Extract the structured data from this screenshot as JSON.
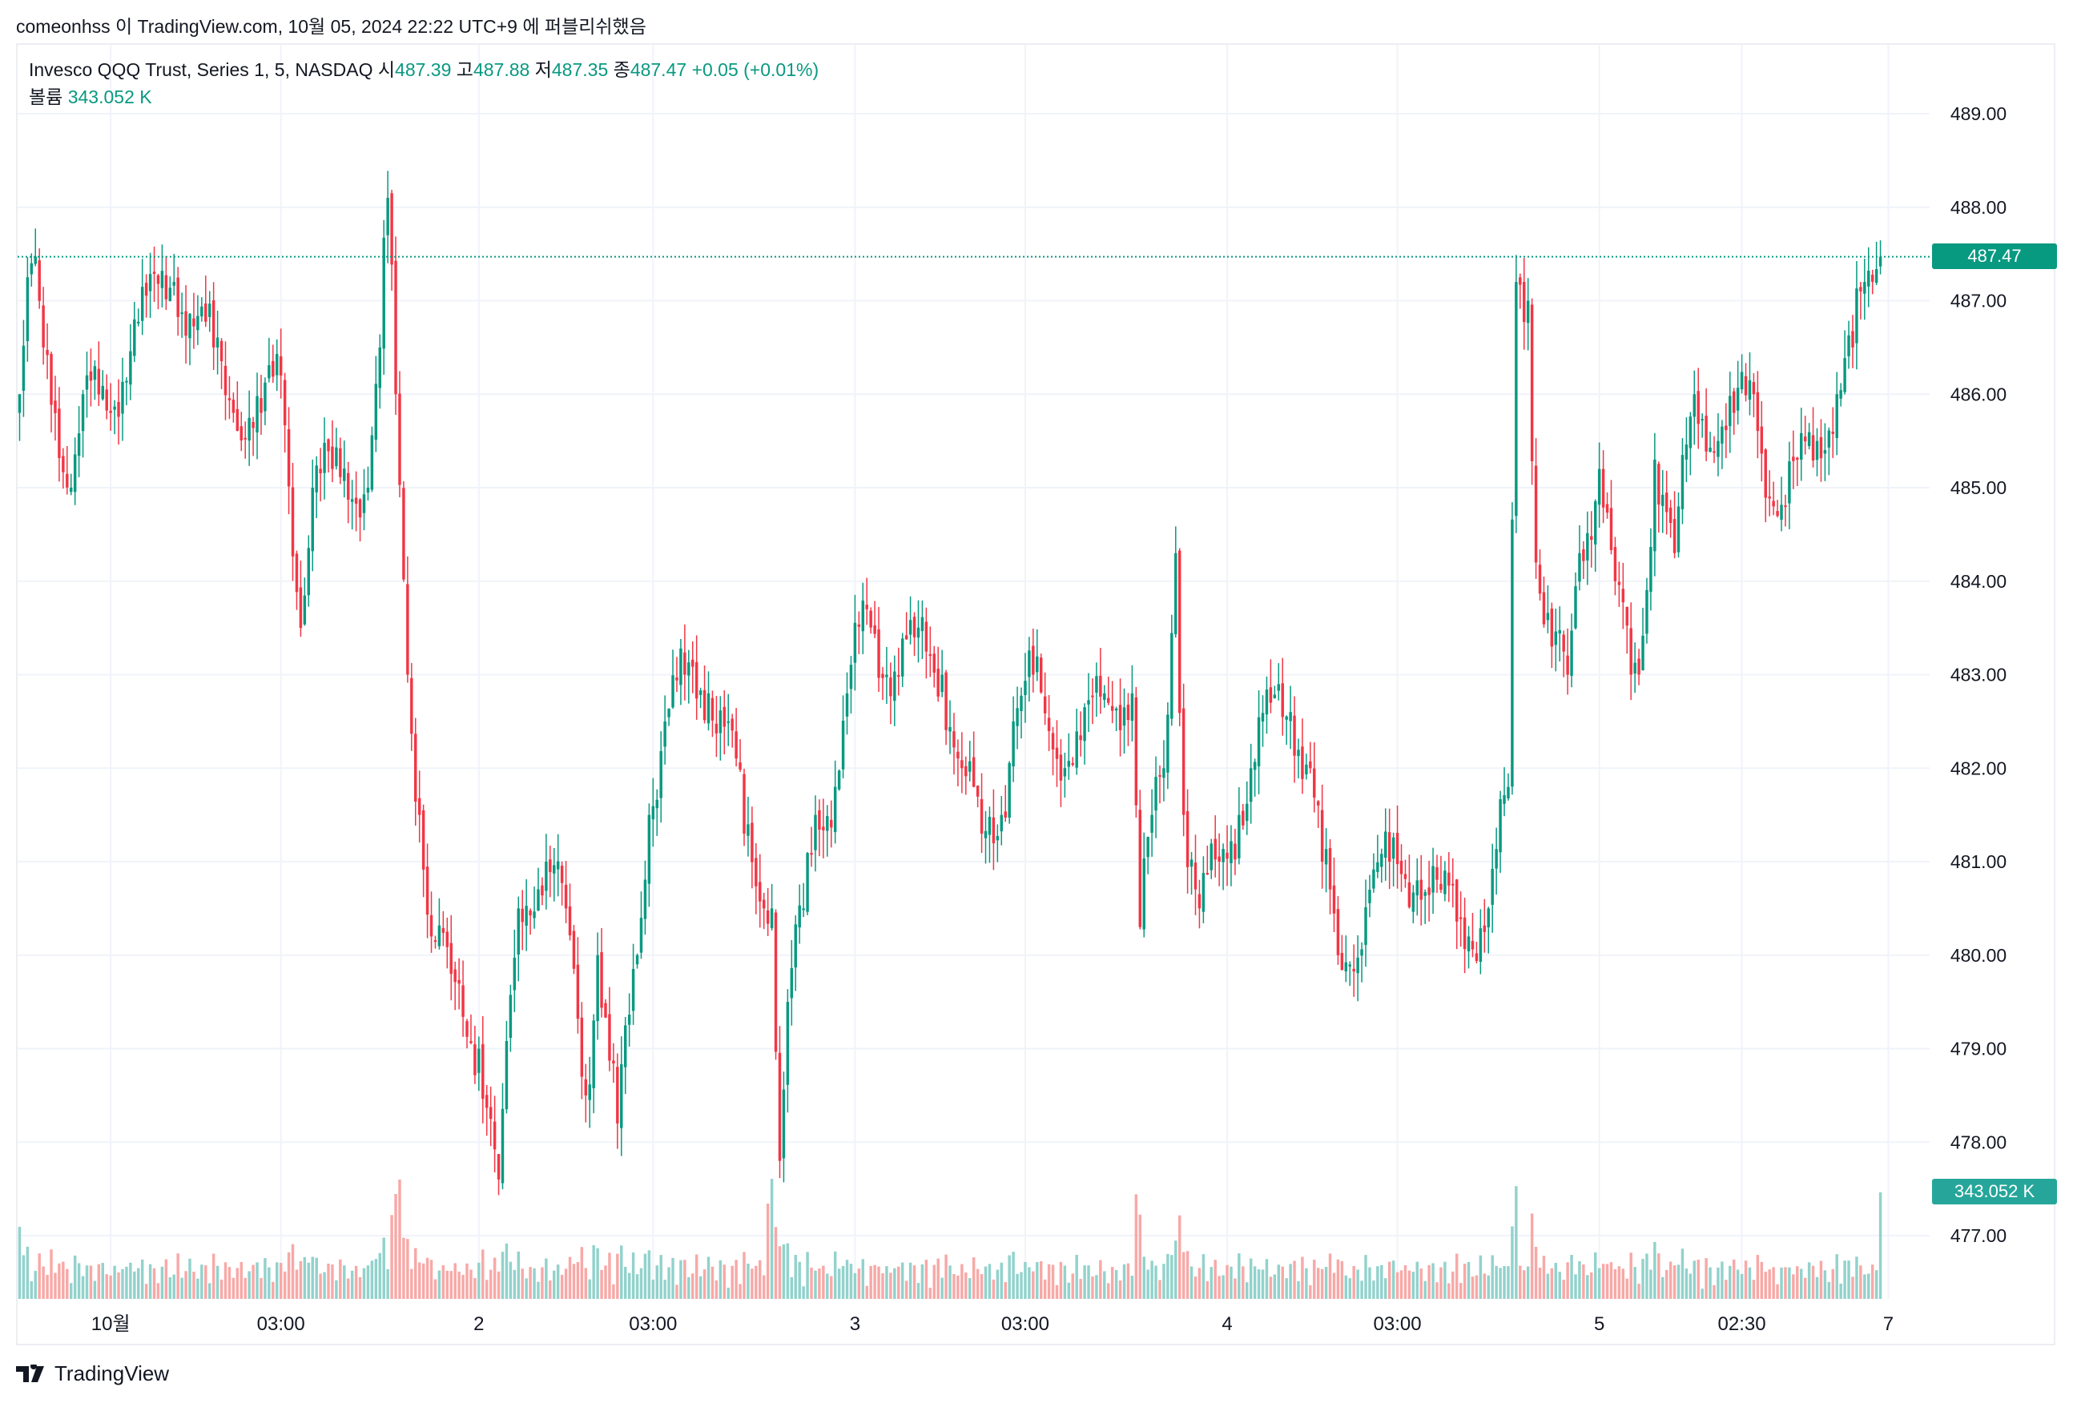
{
  "published": "comeonhss 이 TradingView.com, 10월 05, 2024 22:22 UTC+9 에 퍼블리쉬했음",
  "legend": {
    "symbol": "Invesco QQQ Trust, Series 1, 5, NASDAQ",
    "open_label": "시",
    "open": "487.39",
    "high_label": "고",
    "high": "487.88",
    "low_label": "저",
    "low": "487.35",
    "close_label": "종",
    "close": "487.47",
    "change": "+0.05 (+0.01%)",
    "volume_label": "볼륨",
    "volume": "343.052 K"
  },
  "last_price_label": "487.47",
  "last_volume_label": "343.052 K",
  "footer_brand": "TradingView",
  "colors": {
    "up": "#089981",
    "down": "#F23645",
    "up_vol": "#92D2CC",
    "down_vol": "#F7A9A7",
    "grid": "#F0F3FA"
  },
  "chart_data": {
    "type": "candlestick",
    "title": "Invesco QQQ Trust, Series 1, 5, NASDAQ",
    "ylim": [
      476.8,
      489.8
    ],
    "y_ticks": [
      "489.00",
      "488.00",
      "487.00",
      "486.00",
      "485.00",
      "484.00",
      "483.00",
      "482.00",
      "481.00",
      "480.00",
      "479.00",
      "478.00",
      "477.00"
    ],
    "candle_count": 471,
    "x_ticks": [
      {
        "label": "10월",
        "index": 23
      },
      {
        "label": "03:00",
        "index": 66
      },
      {
        "label": "2",
        "index": 116
      },
      {
        "label": "03:00",
        "index": 160
      },
      {
        "label": "3",
        "index": 211
      },
      {
        "label": "03:00",
        "index": 254
      },
      {
        "label": "4",
        "index": 305
      },
      {
        "label": "03:00",
        "index": 348
      },
      {
        "label": "5",
        "index": 399
      },
      {
        "label": "02:30",
        "index": 435
      },
      {
        "label": "7",
        "index": 472
      }
    ],
    "close_path": [
      [
        0,
        486.0
      ],
      [
        3,
        487.4
      ],
      [
        6,
        486.5
      ],
      [
        13,
        485.0
      ],
      [
        16,
        486.0
      ],
      [
        23,
        485.8
      ],
      [
        29,
        486.8
      ],
      [
        39,
        487.2
      ],
      [
        49,
        486.5
      ],
      [
        54,
        485.8
      ],
      [
        61,
        485.8
      ],
      [
        66,
        486.2
      ],
      [
        71,
        483.5
      ],
      [
        74,
        485.0
      ],
      [
        79,
        485.2
      ],
      [
        88,
        485.0
      ],
      [
        91,
        486.5
      ],
      [
        93,
        488.1
      ],
      [
        95,
        486.0
      ],
      [
        98,
        483.0
      ],
      [
        101,
        481.5
      ],
      [
        104,
        480.2
      ],
      [
        109,
        479.8
      ],
      [
        116,
        479.0
      ],
      [
        121,
        477.6
      ],
      [
        126,
        480.5
      ],
      [
        133,
        481.0
      ],
      [
        138,
        480.5
      ],
      [
        143,
        478.5
      ],
      [
        146,
        480.0
      ],
      [
        151,
        478.2
      ],
      [
        156,
        480.0
      ],
      [
        159,
        481.5
      ],
      [
        163,
        482.5
      ],
      [
        168,
        483.0
      ],
      [
        174,
        482.8
      ],
      [
        179,
        482.5
      ],
      [
        183,
        481.3
      ],
      [
        188,
        480.5
      ],
      [
        190,
        480.5
      ],
      [
        192,
        477.8
      ],
      [
        194,
        479.5
      ],
      [
        198,
        480.5
      ],
      [
        201,
        481.5
      ],
      [
        206,
        481.8
      ],
      [
        209,
        482.8
      ],
      [
        214,
        483.7
      ],
      [
        219,
        483.0
      ],
      [
        226,
        483.4
      ],
      [
        233,
        483.0
      ],
      [
        238,
        482.0
      ],
      [
        243,
        481.3
      ],
      [
        248,
        481.5
      ],
      [
        251,
        482.5
      ],
      [
        256,
        483.0
      ],
      [
        261,
        482.2
      ],
      [
        268,
        482.3
      ],
      [
        274,
        482.8
      ],
      [
        281,
        482.8
      ],
      [
        283,
        480.3
      ],
      [
        286,
        481.5
      ],
      [
        289,
        482.0
      ],
      [
        292,
        484.3
      ],
      [
        294,
        481.5
      ],
      [
        298,
        480.5
      ],
      [
        303,
        481.0
      ],
      [
        308,
        481.5
      ],
      [
        311,
        482.0
      ],
      [
        316,
        482.7
      ],
      [
        321,
        482.6
      ],
      [
        326,
        482.0
      ],
      [
        329,
        481.0
      ],
      [
        333,
        480.0
      ],
      [
        336,
        479.9
      ],
      [
        341,
        480.7
      ],
      [
        346,
        481.0
      ],
      [
        353,
        480.8
      ],
      [
        359,
        480.7
      ],
      [
        366,
        480.2
      ],
      [
        371,
        480.5
      ],
      [
        376,
        481.8
      ],
      [
        378,
        487.2
      ],
      [
        381,
        487.0
      ],
      [
        383,
        484.2
      ],
      [
        387,
        483.3
      ],
      [
        391,
        483.0
      ],
      [
        394,
        484.3
      ],
      [
        399,
        485.2
      ],
      [
        403,
        484.0
      ],
      [
        407,
        483.0
      ],
      [
        409,
        483.0
      ],
      [
        413,
        485.3
      ],
      [
        418,
        484.3
      ],
      [
        423,
        486.0
      ],
      [
        429,
        485.5
      ],
      [
        433,
        485.8
      ],
      [
        438,
        486.0
      ],
      [
        443,
        484.8
      ],
      [
        446,
        484.8
      ],
      [
        449,
        485.3
      ],
      [
        454,
        485.5
      ],
      [
        459,
        486.0
      ],
      [
        463,
        486.5
      ],
      [
        466,
        487.2
      ],
      [
        470,
        487.47
      ]
    ],
    "volume_spikes_index": [
      0,
      94,
      95,
      96,
      189,
      190,
      282,
      283,
      377,
      378,
      470
    ],
    "last_close": 487.47,
    "last_volume_k": 343.052
  }
}
